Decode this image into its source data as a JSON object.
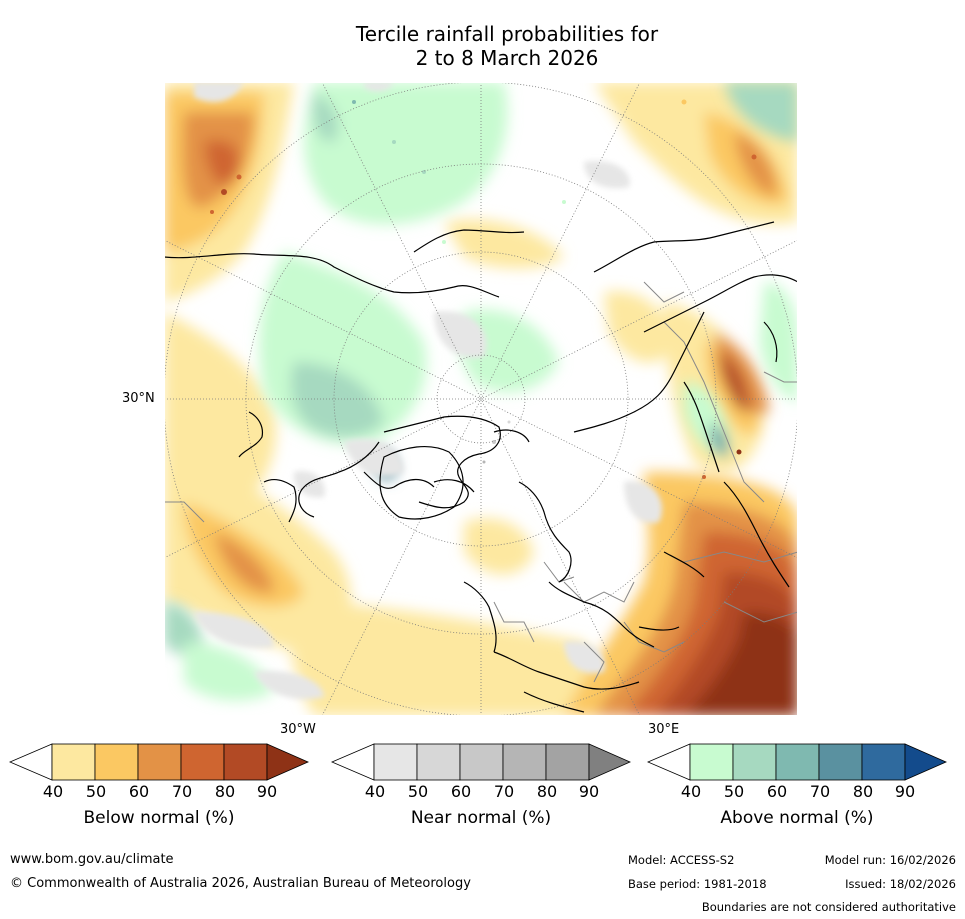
{
  "title": {
    "line1": "Tercile rainfall probabilities for",
    "line2": "2 to 8 March 2026"
  },
  "map": {
    "projection": "north polar stereographic",
    "lat_label": "30°N",
    "lon_label_left": "30°W",
    "lon_label_right": "30°E"
  },
  "legends": [
    {
      "label": "Below normal (%)",
      "ticks": [
        "40",
        "50",
        "60",
        "70",
        "80",
        "90"
      ],
      "colors": [
        "#ffffff",
        "#fde8a0",
        "#fbc862",
        "#e39246",
        "#cf6530",
        "#b24a25",
        "#8e3216"
      ]
    },
    {
      "label": "Near normal (%)",
      "ticks": [
        "40",
        "50",
        "60",
        "70",
        "80",
        "90"
      ],
      "colors": [
        "#ffffff",
        "#e6e6e6",
        "#d7d7d7",
        "#c8c8c8",
        "#b5b5b5",
        "#a3a3a3",
        "#808080"
      ]
    },
    {
      "label": "Above normal (%)",
      "ticks": [
        "40",
        "50",
        "60",
        "70",
        "80",
        "90"
      ],
      "colors": [
        "#ffffff",
        "#c8fbd0",
        "#a6d9c0",
        "#7fb9b0",
        "#5a91a0",
        "#2f6a9e",
        "#134b8c"
      ]
    }
  ],
  "footer": {
    "website": "www.bom.gov.au/climate",
    "copyright": "© Commonwealth of Australia 2026, Australian Bureau of Meteorology",
    "model": "Model: ACCESS-S2",
    "model_run": "Model run: 16/02/2026",
    "base_period": "Base period: 1981-2018",
    "issued": "Issued: 18/02/2026",
    "disclaimer": "Boundaries are not considered authoritative"
  }
}
